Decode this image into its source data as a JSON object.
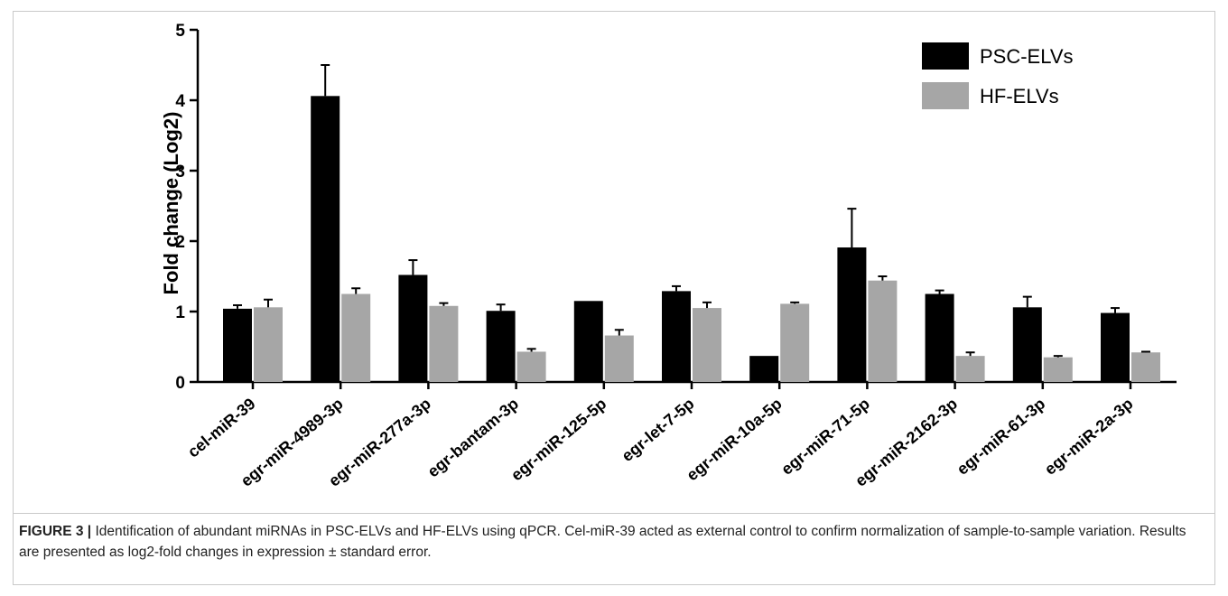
{
  "chart_data": {
    "type": "bar",
    "title": "",
    "xlabel": "",
    "ylabel": "Fold change (Log2)",
    "ylim": [
      0,
      5
    ],
    "yticks": [
      0,
      1,
      2,
      3,
      4,
      5
    ],
    "grid": false,
    "legend_position": "top-right",
    "categories": [
      "cel-miR-39",
      "egr-miR-4989-3p",
      "egr-miR-277a-3p",
      "egr-bantam-3p",
      "egr-miR-125-5p",
      "egr-let-7-5p",
      "egr-miR-10a-5p",
      "egr-miR-71-5p",
      "egr-miR-2162-3p",
      "egr-miR-61-3p",
      "egr-miR-2a-3p"
    ],
    "series": [
      {
        "name": "PSC-ELVs",
        "color": "#000000",
        "values": [
          1.04,
          4.06,
          1.52,
          1.01,
          1.15,
          1.29,
          0.37,
          1.91,
          1.25,
          1.06,
          0.98
        ],
        "errors": [
          0.05,
          0.44,
          0.21,
          0.09,
          0.0,
          0.07,
          0.0,
          0.55,
          0.05,
          0.15,
          0.07
        ]
      },
      {
        "name": "HF-ELVs",
        "color": "#a6a6a6",
        "values": [
          1.06,
          1.25,
          1.08,
          0.43,
          0.66,
          1.05,
          1.11,
          1.44,
          0.37,
          0.35,
          0.42
        ],
        "errors": [
          0.11,
          0.08,
          0.04,
          0.04,
          0.08,
          0.08,
          0.02,
          0.06,
          0.05,
          0.02,
          0.01
        ]
      }
    ]
  },
  "caption": {
    "label": "FIGURE 3 |",
    "text": " Identification of abundant miRNAs in PSC-ELVs and HF-ELVs using qPCR. Cel-miR-39 acted as external control to confirm normalization of sample-to-sample variation. Results are presented as log2-fold changes in expression ± standard error."
  }
}
